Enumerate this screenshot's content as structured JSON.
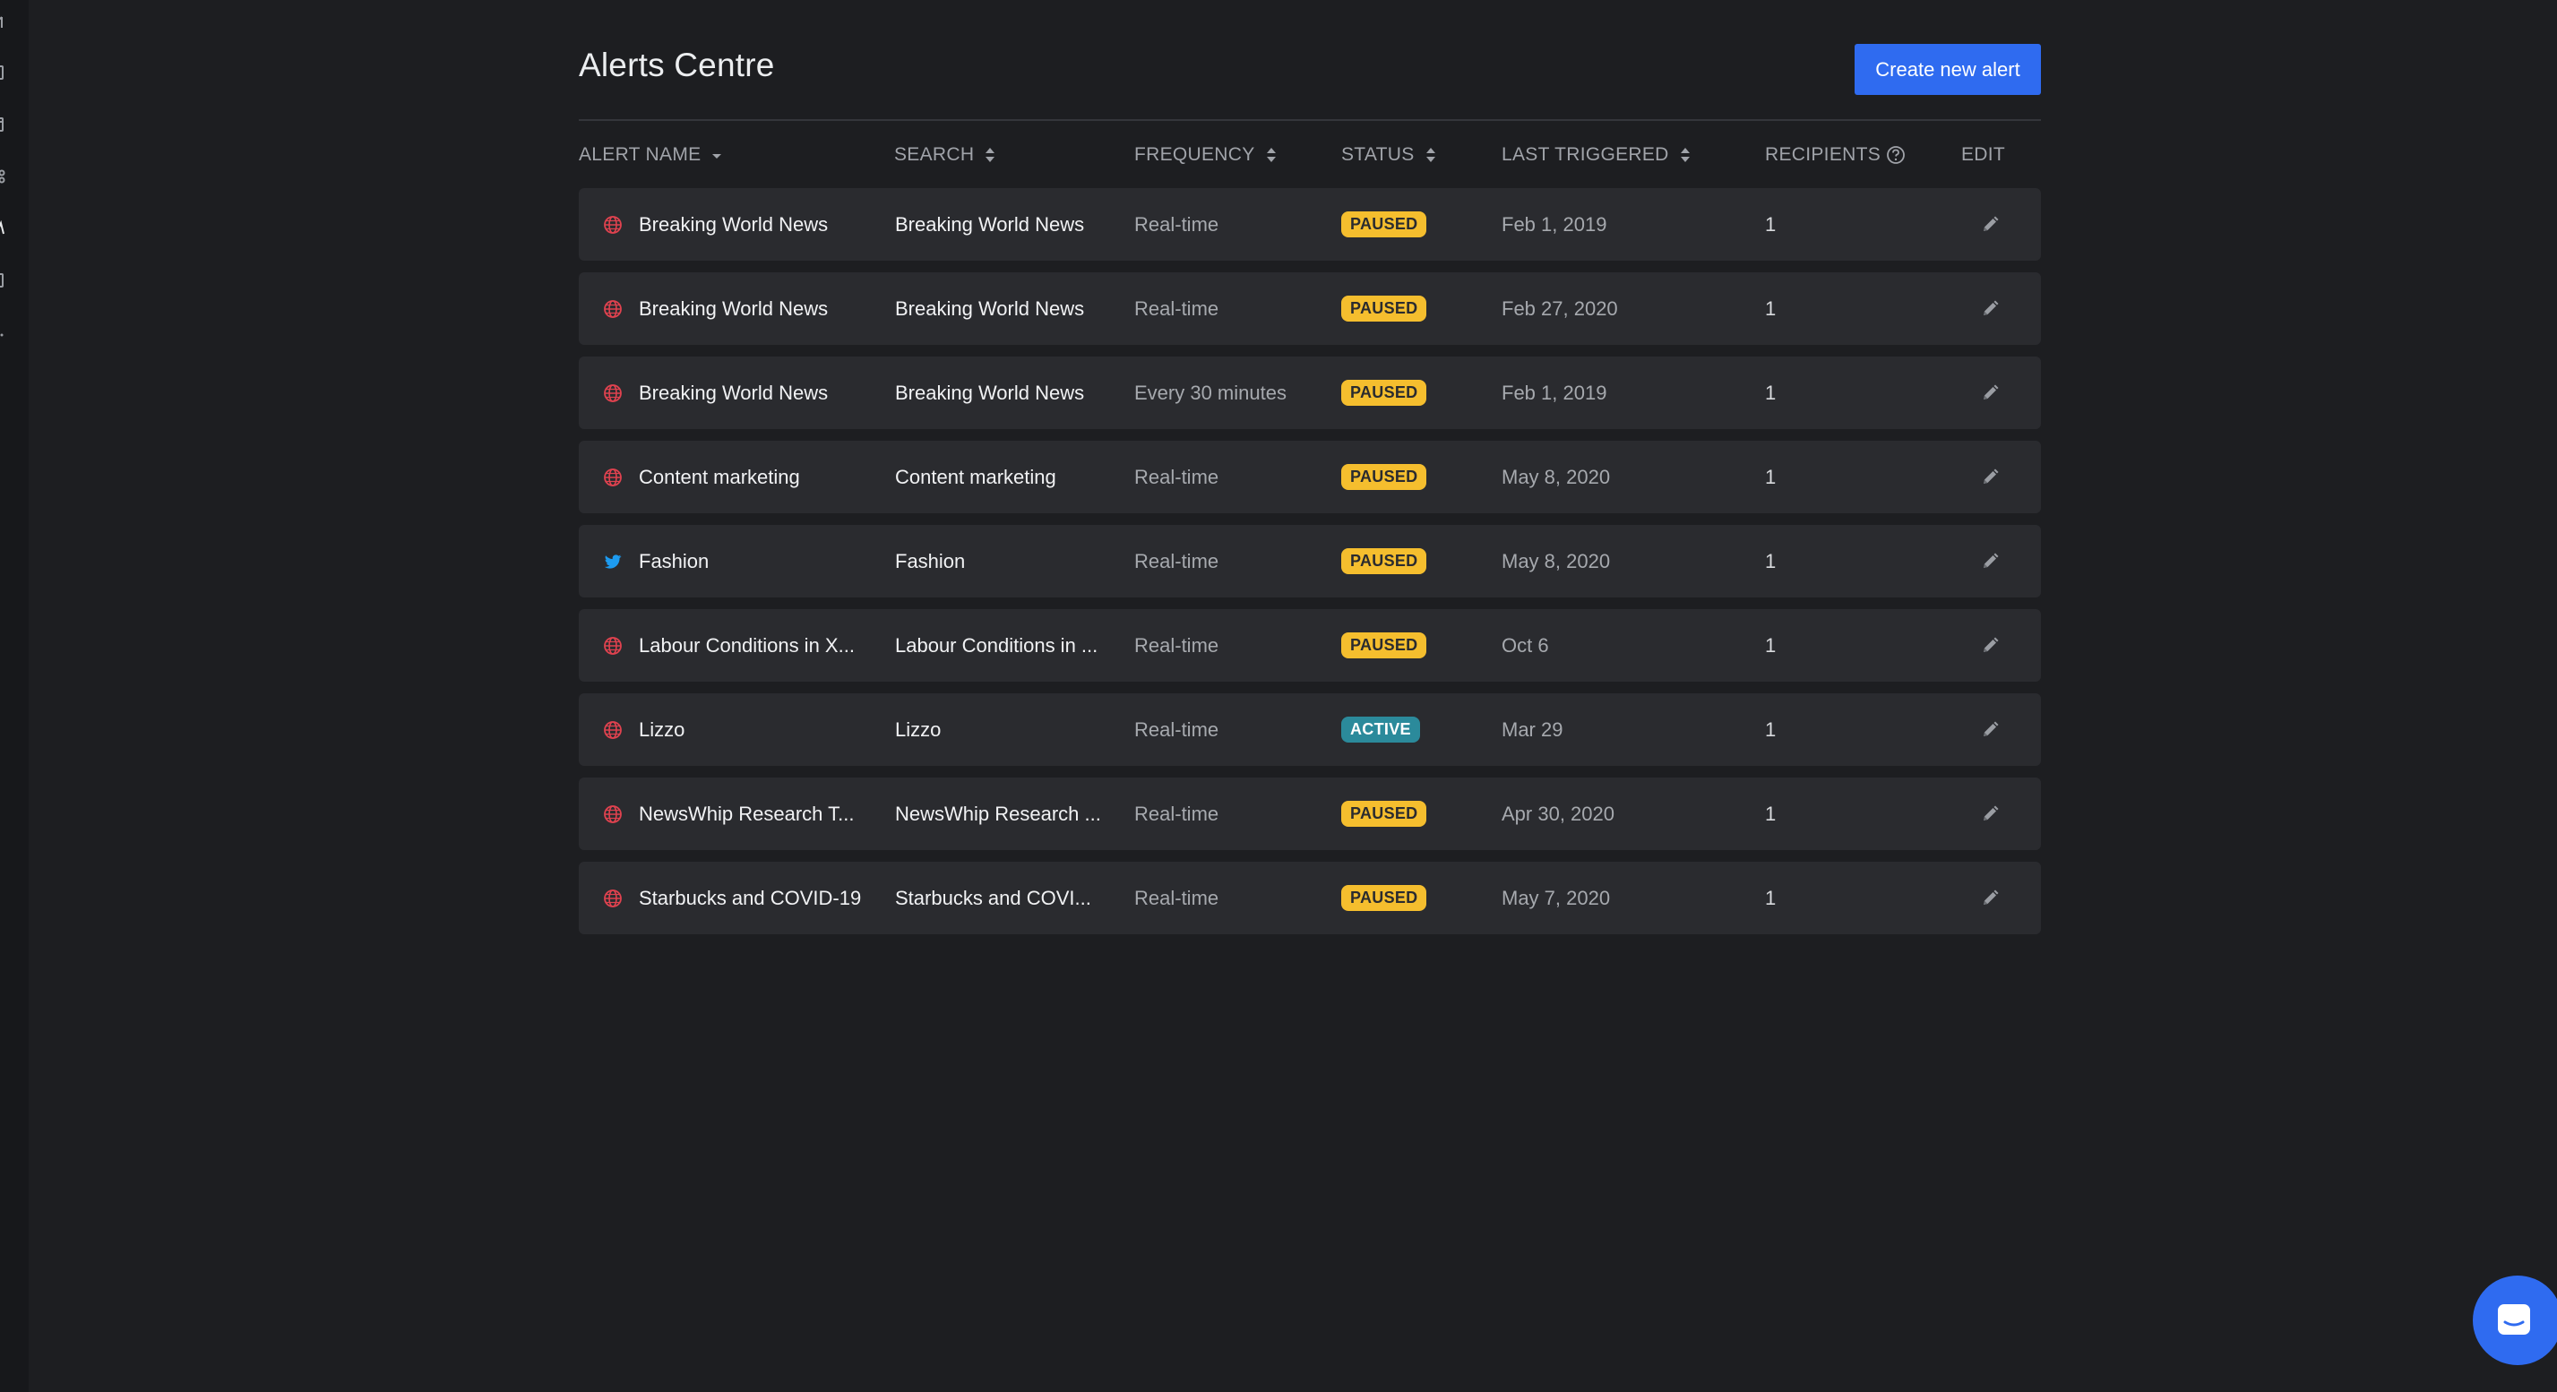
{
  "page": {
    "title": "Alerts Centre",
    "create_button": "Create new alert"
  },
  "columns": {
    "alert_name": "ALERT NAME",
    "search": "SEARCH",
    "frequency": "FREQUENCY",
    "status": "STATUS",
    "last_triggered": "LAST TRIGGERED",
    "recipients": "RECIPIENTS",
    "edit": "EDIT"
  },
  "colors": {
    "accent": "#2f6bf0",
    "paused": "#f5be2e",
    "active": "#2b8a9b",
    "web_icon": "#e0424f",
    "twitter_icon": "#1d9bf0"
  },
  "alerts": [
    {
      "icon": "globe-icon",
      "name": "Breaking World News",
      "search": "Breaking World News",
      "frequency": "Real-time",
      "status": "PAUSED",
      "last_triggered": "Feb 1, 2019",
      "recipients": "1"
    },
    {
      "icon": "globe-icon",
      "name": "Breaking World News",
      "search": "Breaking World News",
      "frequency": "Real-time",
      "status": "PAUSED",
      "last_triggered": "Feb 27, 2020",
      "recipients": "1"
    },
    {
      "icon": "globe-icon",
      "name": "Breaking World News",
      "search": "Breaking World News",
      "frequency": "Every 30 minutes",
      "status": "PAUSED",
      "last_triggered": "Feb 1, 2019",
      "recipients": "1"
    },
    {
      "icon": "globe-icon",
      "name": "Content marketing",
      "search": "Content marketing",
      "frequency": "Real-time",
      "status": "PAUSED",
      "last_triggered": "May 8, 2020",
      "recipients": "1"
    },
    {
      "icon": "twitter-icon",
      "name": "Fashion",
      "search": "Fashion",
      "frequency": "Real-time",
      "status": "PAUSED",
      "last_triggered": "May 8, 2020",
      "recipients": "1"
    },
    {
      "icon": "globe-icon",
      "name": "Labour Conditions in X...",
      "search": "Labour Conditions in ...",
      "frequency": "Real-time",
      "status": "PAUSED",
      "last_triggered": "Oct 6",
      "recipients": "1"
    },
    {
      "icon": "globe-icon",
      "name": "Lizzo",
      "search": "Lizzo",
      "frequency": "Real-time",
      "status": "ACTIVE",
      "last_triggered": "Mar 29",
      "recipients": "1"
    },
    {
      "icon": "globe-icon",
      "name": "NewsWhip Research T...",
      "search": "NewsWhip Research ...",
      "frequency": "Real-time",
      "status": "PAUSED",
      "last_triggered": "Apr 30, 2020",
      "recipients": "1"
    },
    {
      "icon": "globe-icon",
      "name": "Starbucks and COVID-19",
      "search": "Starbucks and COVI...",
      "frequency": "Real-time",
      "status": "PAUSED",
      "last_triggered": "May 7, 2020",
      "recipients": "1"
    }
  ],
  "sidebar": {
    "icons": [
      "nav-icon-1",
      "nav-icon-2",
      "nav-icon-3",
      "nav-icon-4",
      "nav-icon-5",
      "nav-icon-6",
      "nav-icon-7"
    ]
  },
  "chat": {
    "icon": "chat-icon"
  }
}
